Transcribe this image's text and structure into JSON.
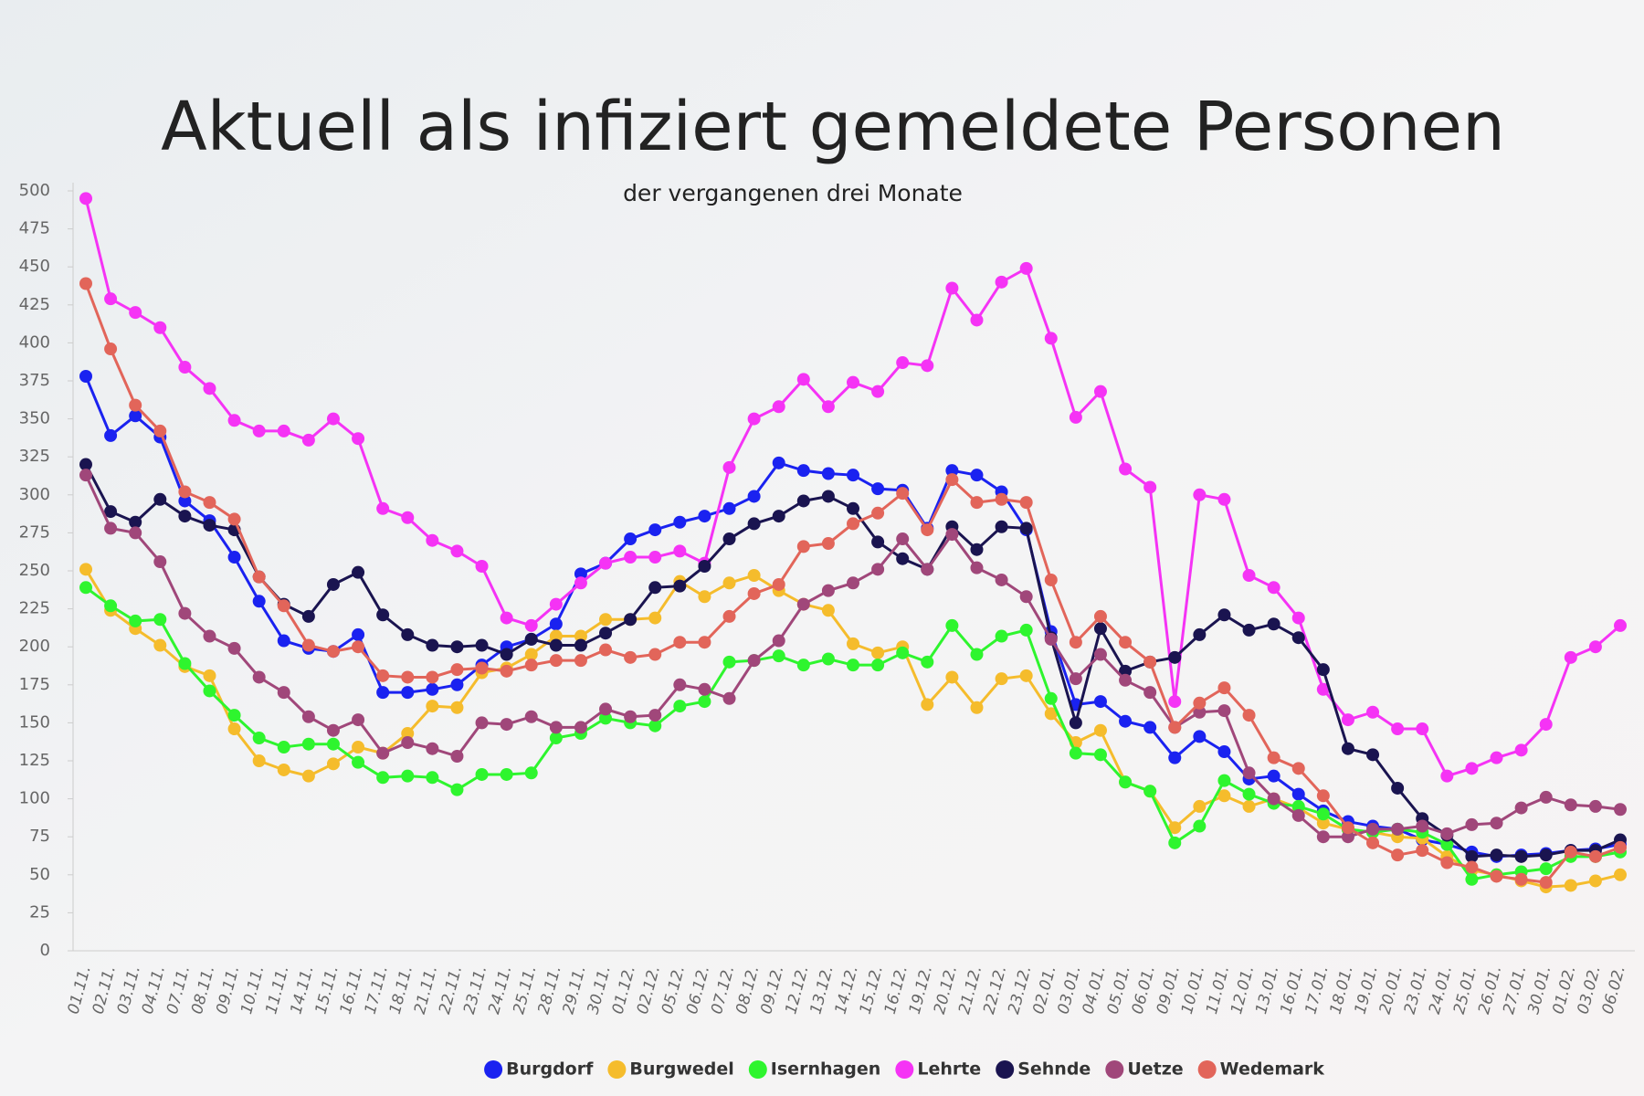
{
  "chart_data": {
    "type": "line",
    "title": "Aktuell als infiziert gemeldete Personen",
    "subtitle": "der vergangenen drei Monate",
    "categories": [
      "01.11.",
      "02.11.",
      "03.11.",
      "04.11.",
      "07.11.",
      "08.11.",
      "09.11.",
      "10.11.",
      "11.11.",
      "14.11.",
      "15.11.",
      "16.11.",
      "17.11.",
      "18.11.",
      "21.11.",
      "22.11.",
      "23.11.",
      "24.11.",
      "25.11.",
      "28.11.",
      "29.11.",
      "30.11.",
      "01.12.",
      "02.12.",
      "05.12.",
      "06.12.",
      "07.12.",
      "08.12.",
      "09.12.",
      "12.12.",
      "13.12.",
      "14.12.",
      "15.12.",
      "16.12.",
      "19.12.",
      "20.12.",
      "21.12.",
      "22.12.",
      "23.12.",
      "02.01.",
      "03.01.",
      "04.01.",
      "05.01.",
      "06.01.",
      "09.01.",
      "10.01.",
      "11.01.",
      "12.01.",
      "13.01.",
      "16.01.",
      "17.01.",
      "18.01.",
      "19.01.",
      "20.01.",
      "23.01.",
      "24.01.",
      "25.01.",
      "26.01.",
      "27.01.",
      "30.01.",
      "01.02.",
      "03.02.",
      "06.02."
    ],
    "series": [
      {
        "name": "Burgdorf",
        "color": "#1a22f0",
        "values": [
          378,
          339,
          352,
          338,
          296,
          283,
          259,
          230,
          204,
          199,
          197,
          208,
          170,
          170,
          172,
          175,
          188,
          200,
          205,
          215,
          248,
          255,
          271,
          277,
          282,
          286,
          291,
          299,
          321,
          316,
          314,
          313,
          304,
          303,
          278,
          316,
          313,
          302,
          277,
          210,
          162,
          164,
          151,
          147,
          127,
          141,
          131,
          113,
          115,
          103,
          92,
          85,
          82,
          80,
          73,
          70,
          65,
          62,
          63,
          64,
          66,
          67,
          70
        ]
      },
      {
        "name": "Burgwedel",
        "color": "#f5bc2c",
        "values": [
          251,
          224,
          212,
          201,
          187,
          181,
          146,
          125,
          119,
          115,
          123,
          134,
          130,
          143,
          161,
          160,
          183,
          186,
          195,
          207,
          207,
          218,
          218,
          219,
          243,
          233,
          242,
          247,
          237,
          228,
          224,
          202,
          196,
          200,
          162,
          180,
          160,
          179,
          181,
          156,
          137,
          145,
          111,
          105,
          81,
          95,
          102,
          95,
          100,
          94,
          84,
          80,
          78,
          75,
          74,
          62,
          53,
          50,
          46,
          42,
          43,
          46,
          50
        ]
      },
      {
        "name": "Isernhagen",
        "color": "#2ef52e",
        "values": [
          239,
          227,
          217,
          218,
          189,
          171,
          155,
          140,
          134,
          136,
          136,
          124,
          114,
          115,
          114,
          106,
          116,
          116,
          117,
          140,
          143,
          153,
          150,
          148,
          161,
          164,
          190,
          191,
          194,
          188,
          192,
          188,
          188,
          196,
          190,
          214,
          195,
          207,
          211,
          166,
          130,
          129,
          111,
          105,
          71,
          82,
          112,
          103,
          97,
          95,
          90,
          80,
          78,
          80,
          78,
          70,
          47,
          50,
          52,
          54,
          62,
          62,
          65
        ]
      },
      {
        "name": "Lehrte",
        "color": "#f533f5",
        "values": [
          495,
          429,
          420,
          410,
          384,
          370,
          349,
          342,
          342,
          336,
          350,
          337,
          291,
          285,
          270,
          263,
          253,
          219,
          214,
          228,
          242,
          255,
          259,
          259,
          263,
          255,
          318,
          350,
          358,
          376,
          358,
          374,
          368,
          387,
          385,
          436,
          415,
          440,
          449,
          403,
          351,
          368,
          317,
          305,
          164,
          300,
          297,
          247,
          239,
          219,
          172,
          152,
          157,
          146,
          146,
          115,
          120,
          127,
          132,
          149,
          193,
          200,
          214
        ]
      },
      {
        "name": "Sehnde",
        "color": "#1a1450",
        "values": [
          320,
          289,
          282,
          297,
          286,
          280,
          277,
          246,
          228,
          220,
          241,
          249,
          221,
          208,
          201,
          200,
          201,
          195,
          205,
          201,
          201,
          209,
          218,
          239,
          240,
          253,
          271,
          281,
          286,
          296,
          299,
          291,
          269,
          258,
          251,
          279,
          264,
          279,
          278,
          206,
          150,
          212,
          184,
          190,
          193,
          208,
          221,
          211,
          215,
          206,
          185,
          133,
          129,
          107,
          87,
          76,
          62,
          63,
          62,
          63,
          66,
          66,
          73
        ]
      },
      {
        "name": "Uetze",
        "color": "#a0477a",
        "values": [
          313,
          278,
          275,
          256,
          222,
          207,
          199,
          180,
          170,
          154,
          145,
          152,
          130,
          137,
          133,
          128,
          150,
          149,
          154,
          147,
          147,
          159,
          154,
          155,
          175,
          172,
          166,
          191,
          204,
          228,
          237,
          242,
          251,
          271,
          251,
          274,
          252,
          244,
          233,
          205,
          179,
          195,
          178,
          170,
          147,
          157,
          158,
          117,
          100,
          89,
          75,
          75,
          80,
          80,
          82,
          77,
          83,
          84,
          94,
          101,
          96,
          95,
          93
        ]
      },
      {
        "name": "Wedemark",
        "color": "#e2655a",
        "values": [
          439,
          396,
          359,
          342,
          302,
          295,
          284,
          246,
          227,
          201,
          197,
          200,
          181,
          180,
          180,
          185,
          186,
          184,
          188,
          191,
          191,
          198,
          193,
          195,
          203,
          203,
          220,
          235,
          241,
          266,
          268,
          281,
          288,
          301,
          277,
          310,
          295,
          297,
          295,
          244,
          203,
          220,
          203,
          190,
          147,
          163,
          173,
          155,
          127,
          120,
          102,
          81,
          71,
          63,
          66,
          58,
          55,
          49,
          47,
          45,
          65,
          62,
          68
        ]
      }
    ],
    "ylim": [
      0,
      500
    ],
    "yticks": [
      0,
      25,
      50,
      75,
      100,
      125,
      150,
      175,
      200,
      225,
      250,
      275,
      300,
      325,
      350,
      375,
      400,
      425,
      450,
      475,
      500
    ],
    "legend": "bottom"
  }
}
